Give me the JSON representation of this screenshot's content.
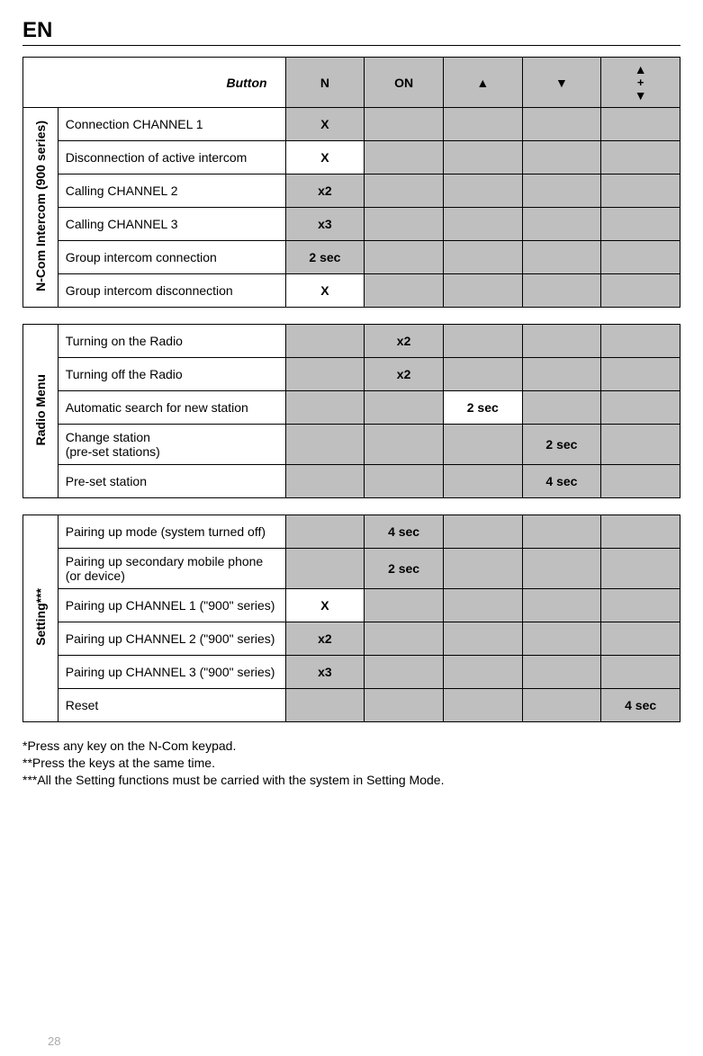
{
  "header": {
    "lang": "EN"
  },
  "columns": {
    "button": "Button",
    "n": "N",
    "on": "ON",
    "up": "▲",
    "down": "▼",
    "combo_up": "▲",
    "combo_plus": "+",
    "combo_down": "▼"
  },
  "sections": {
    "intercom": {
      "label": "N-Com Intercom (900 series)",
      "rows": [
        {
          "func": "Connection CHANNEL 1",
          "n": "X",
          "on": "",
          "up": "",
          "down": "",
          "combo": ""
        },
        {
          "func": "Disconnection of active intercom",
          "n": "X",
          "on": "",
          "up": "",
          "down": "",
          "combo": ""
        },
        {
          "func": "Calling CHANNEL 2",
          "n": "x2",
          "on": "",
          "up": "",
          "down": "",
          "combo": ""
        },
        {
          "func": "Calling CHANNEL 3",
          "n": "x3",
          "on": "",
          "up": "",
          "down": "",
          "combo": ""
        },
        {
          "func": "Group intercom connection",
          "n": "2 sec",
          "on": "",
          "up": "",
          "down": "",
          "combo": ""
        },
        {
          "func": "Group intercom disconnection",
          "n": "X",
          "on": "",
          "up": "",
          "down": "",
          "combo": ""
        }
      ]
    },
    "radio": {
      "label": "Radio Menu",
      "rows": [
        {
          "func": "Turning on the Radio",
          "n": "",
          "on": "x2",
          "up": "",
          "down": "",
          "combo": ""
        },
        {
          "func": "Turning off the Radio",
          "n": "",
          "on": "x2",
          "up": "",
          "down": "",
          "combo": ""
        },
        {
          "func": "Automatic search for new station",
          "n": "",
          "on": "",
          "up": "2 sec",
          "down": "",
          "combo": ""
        },
        {
          "func": "Change station\n(pre-set stations)",
          "n": "",
          "on": "",
          "up": "",
          "down": "2 sec",
          "combo": ""
        },
        {
          "func": "Pre-set station",
          "n": "",
          "on": "",
          "up": "",
          "down": "4 sec",
          "combo": ""
        }
      ]
    },
    "setting": {
      "label": "Setting***",
      "rows": [
        {
          "func": "Pairing up mode (system turned off)",
          "n": "",
          "on": "4 sec",
          "up": "",
          "down": "",
          "combo": ""
        },
        {
          "func": "Pairing up secondary mobile phone (or device)",
          "n": "",
          "on": "2 sec",
          "up": "",
          "down": "",
          "combo": ""
        },
        {
          "func": "Pairing up CHANNEL 1 (\"900\" series)",
          "n": "X",
          "on": "",
          "up": "",
          "down": "",
          "combo": ""
        },
        {
          "func": "Pairing up CHANNEL  2 (\"900\" series)",
          "n": "x2",
          "on": "",
          "up": "",
          "down": "",
          "combo": ""
        },
        {
          "func": "Pairing up CHANNEL 3 (\"900\" series)",
          "n": "x3",
          "on": "",
          "up": "",
          "down": "",
          "combo": ""
        },
        {
          "func": "Reset",
          "n": "",
          "on": "",
          "up": "",
          "down": "",
          "combo": "4 sec"
        }
      ]
    }
  },
  "notes": {
    "l1": "*Press any key on the N-Com keypad.",
    "l2": "**Press the keys at the same time.",
    "l3": "***All the Setting functions must be carried with the system in Setting Mode."
  },
  "page_number": "28"
}
